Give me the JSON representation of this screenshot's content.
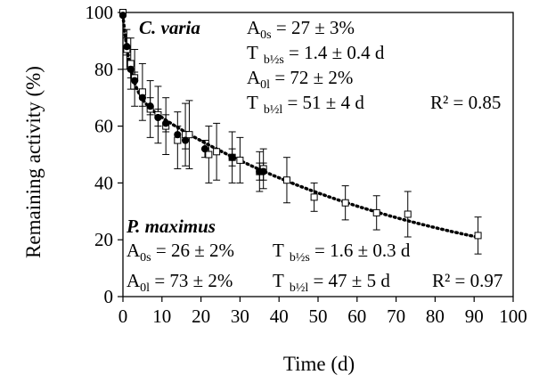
{
  "chart_data": {
    "type": "scatter",
    "xlabel": "Time (d)",
    "ylabel": "Remaining activity (%)",
    "xlim": [
      0,
      100
    ],
    "ylim": [
      0,
      100
    ],
    "xticks": [
      "0",
      "10",
      "20",
      "30",
      "40",
      "50",
      "60",
      "70",
      "80",
      "90",
      "100"
    ],
    "yticks": [
      "0",
      "20",
      "40",
      "60",
      "80",
      "100"
    ],
    "grid": false,
    "series": [
      {
        "name": "C. varia",
        "marker": "open-square",
        "color": "#000000",
        "points": [
          {
            "x": 0,
            "y": 100,
            "err": 0
          },
          {
            "x": 1,
            "y": 87,
            "err": 7
          },
          {
            "x": 2,
            "y": 82,
            "err": 9
          },
          {
            "x": 3,
            "y": 77,
            "err": 10
          },
          {
            "x": 5,
            "y": 72,
            "err": 10
          },
          {
            "x": 7,
            "y": 66,
            "err": 10
          },
          {
            "x": 9,
            "y": 64,
            "err": 10
          },
          {
            "x": 11,
            "y": 60,
            "err": 10
          },
          {
            "x": 14,
            "y": 55,
            "err": 10
          },
          {
            "x": 16,
            "y": 57,
            "err": 11
          },
          {
            "x": 17,
            "y": 57,
            "err": 12
          },
          {
            "x": 22,
            "y": 50,
            "err": 10
          },
          {
            "x": 24,
            "y": 51,
            "err": 10
          },
          {
            "x": 28,
            "y": 49,
            "err": 9
          },
          {
            "x": 30,
            "y": 48,
            "err": 8
          },
          {
            "x": 35,
            "y": 44,
            "err": 7
          },
          {
            "x": 36,
            "y": 45,
            "err": 7
          },
          {
            "x": 42,
            "y": 41,
            "err": 8
          },
          {
            "x": 49,
            "y": 35,
            "err": 5
          },
          {
            "x": 57,
            "y": 33,
            "err": 6
          },
          {
            "x": 65,
            "y": 29.5,
            "err": 6
          },
          {
            "x": 73,
            "y": 29,
            "err": 8
          },
          {
            "x": 91,
            "y": 21.5,
            "err": 6.5
          }
        ]
      },
      {
        "name": "P. maximus",
        "marker": "filled-circle",
        "color": "#000000",
        "points": [
          {
            "x": 0,
            "y": 99,
            "err": 0
          },
          {
            "x": 1,
            "y": 88,
            "err": 3
          },
          {
            "x": 2,
            "y": 80,
            "err": 3
          },
          {
            "x": 3,
            "y": 76,
            "err": 3
          },
          {
            "x": 5,
            "y": 70,
            "err": 3
          },
          {
            "x": 7,
            "y": 67,
            "err": 3
          },
          {
            "x": 9,
            "y": 63,
            "err": 3
          },
          {
            "x": 11,
            "y": 61,
            "err": 3
          },
          {
            "x": 14,
            "y": 57,
            "err": 3
          },
          {
            "x": 16,
            "y": 55,
            "err": 3
          },
          {
            "x": 21,
            "y": 52,
            "err": 3
          },
          {
            "x": 28,
            "y": 49,
            "err": 3
          },
          {
            "x": 35,
            "y": 44,
            "err": 3
          },
          {
            "x": 36,
            "y": 44,
            "err": 3
          }
        ]
      }
    ],
    "fit_curve": {
      "style": "dotted",
      "model": "biexponential",
      "A0s": 27,
      "Tb_half_s": 1.4,
      "A0l": 72,
      "Tb_half_l": 51,
      "x_range": [
        0,
        91
      ]
    },
    "annotations": {
      "c_varia": {
        "name": "C. varia",
        "a0s": "A0s = 27 ± 3%",
        "tbs": "T b½s = 1.4 ± 0.4 d",
        "a0l": "A0l = 72 ± 2%",
        "tbl": "T b½l = 51 ± 4 d",
        "r2": "R² = 0.85"
      },
      "p_maximus": {
        "name": "P. maximus",
        "a0s": "A0s = 26 ± 2%",
        "tbs": "T b½s = 1.6 ± 0.3 d",
        "a0l": "A0l = 73 ± 2%",
        "tbl": "T b½l = 47 ± 5 d",
        "r2": "R² = 0.97"
      }
    },
    "annotation_parts": {
      "A": "A",
      "T": "T",
      "sub_0s": "0s",
      "sub_0l": "0l",
      "sub_bs": "b½s",
      "sub_bl": "b½l",
      "cv_a0s_val": " = 27 ± 3%",
      "cv_tbs_val": " = 1.4 ± 0.4 d",
      "cv_a0l_val": " = 72 ± 2%",
      "cv_tbl_val": " = 51 ± 4 d",
      "cv_r2": "R² = 0.85",
      "pm_a0s_val": " = 26 ± 2%",
      "pm_tbs_val": " = 1.6 ± 0.3 d",
      "pm_a0l_val": " = 73 ± 2%",
      "pm_tbl_val": " = 47 ± 5 d",
      "pm_r2": "R² = 0.97"
    }
  }
}
